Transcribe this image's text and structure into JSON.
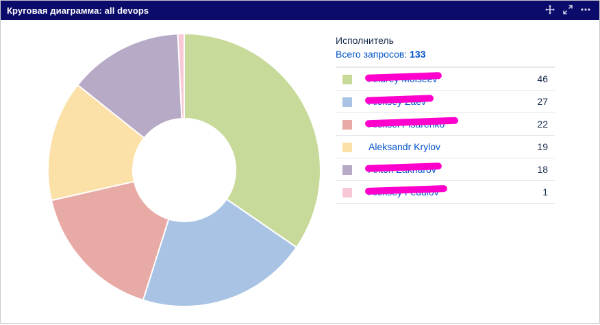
{
  "header": {
    "title": "Круговая диаграмма: all devops",
    "icons": [
      "move-icon",
      "expand-icon",
      "more-icon"
    ]
  },
  "legend": {
    "heading": "Исполнитель",
    "total_label": "Всего запросов:",
    "total_value": "133"
  },
  "chart_data": {
    "type": "pie",
    "title": "Круговая диаграмма: all devops",
    "donut": true,
    "categories": [
      "Andrey Moiseev",
      "Aleksey Zaev",
      "Aleksei Pisarenko",
      "Aleksandr Krylov",
      "Anton Zakharov",
      "Aleksey Fedulov"
    ],
    "values": [
      46,
      27,
      22,
      19,
      18,
      1
    ],
    "colors": [
      "#c8da9a",
      "#a9c3e4",
      "#e8aaa5",
      "#fbe0a8",
      "#b6aac6",
      "#f9c8d6"
    ],
    "redacted": [
      true,
      true,
      true,
      false,
      true,
      true
    ],
    "total": 133
  }
}
